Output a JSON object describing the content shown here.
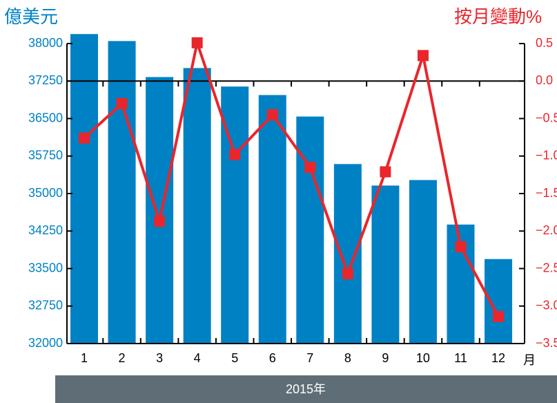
{
  "chart_data": {
    "type": "bar_line",
    "ylabel": "億美元",
    "y2label": "按月變動%",
    "xunit": "月",
    "footer": "2015年",
    "categories": [
      "1",
      "2",
      "3",
      "4",
      "5",
      "6",
      "7",
      "8",
      "9",
      "10",
      "11",
      "12"
    ],
    "series": [
      {
        "name": "億美元",
        "type": "bar",
        "color": "#0081c4",
        "values": [
          38190,
          38050,
          37330,
          37510,
          37140,
          36970,
          36540,
          35590,
          35160,
          35270,
          34380,
          33690
        ]
      },
      {
        "name": "按月變動%",
        "type": "line",
        "axis": "y2",
        "color": "#e8262c",
        "values": [
          -0.76,
          -0.3,
          -1.87,
          0.51,
          -0.98,
          -0.45,
          -1.15,
          -2.57,
          -1.21,
          0.34,
          -2.21,
          -3.14
        ]
      }
    ],
    "ylim": [
      32000,
      38000
    ],
    "yticks": [
      32000,
      32750,
      33500,
      34250,
      35000,
      35750,
      36500,
      37250,
      38000
    ],
    "y2lim": [
      -3.5,
      0.5
    ],
    "y2ticks": [
      {
        "value": 0.5,
        "label": "0.5"
      },
      {
        "value": 0.0,
        "label": "0.0"
      },
      {
        "value": -0.5,
        "label": "−0.5"
      },
      {
        "value": -1.0,
        "label": "−1.0"
      },
      {
        "value": -1.5,
        "label": "−1.5"
      },
      {
        "value": -2.0,
        "label": "−2.0"
      },
      {
        "value": -2.5,
        "label": "−2.5"
      },
      {
        "value": -3.0,
        "label": "−3.0"
      },
      {
        "value": -3.5,
        "label": "−3.5"
      }
    ]
  }
}
